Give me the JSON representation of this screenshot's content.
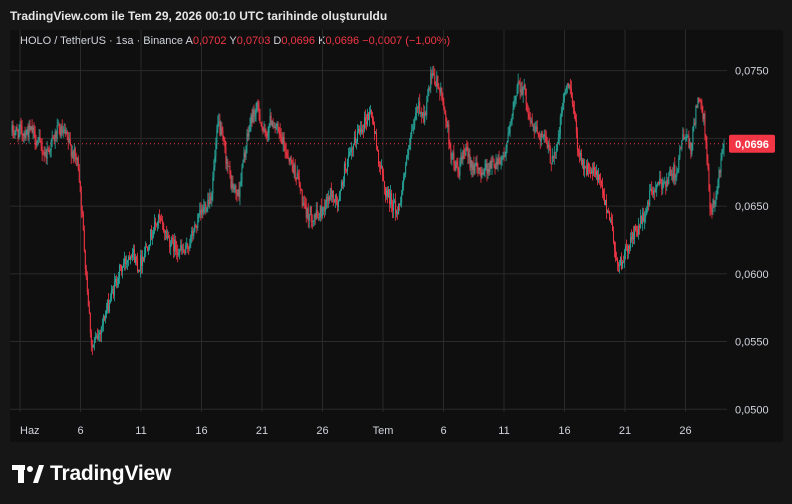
{
  "caption": "TradingView.com ile Tem 29, 2026 00:10 UTC tarihinde oluşturuldu",
  "legend": {
    "symbol": "HOLO / TetherUS · 1sa · Binance",
    "o_label": "A",
    "o_value": "0,0702",
    "h_label": "Y",
    "h_value": "0,0703",
    "l_label": "D",
    "l_value": "0,0696",
    "c_label": "K",
    "c_value": "0,0696",
    "change": "−0,0007 (−1,00%)"
  },
  "price_badge": "0,0696",
  "brand": "TradingView",
  "colors": {
    "up": "#26a69a",
    "down": "#f23645",
    "badge": "#f23645",
    "grid": "#2a2a2a"
  },
  "chart_data": {
    "type": "candlestick",
    "x_ticks": [
      "Haz",
      "6",
      "11",
      "16",
      "21",
      "26",
      "Tem",
      "6",
      "11",
      "16",
      "21",
      "26"
    ],
    "y_ticks": [
      "0,0750",
      "0,0700",
      "0,0650",
      "0,0600",
      "0,0550",
      "0,0500"
    ],
    "ylim": [
      0.0498,
      0.078
    ],
    "last_price": 0.0696,
    "path_anchors": [
      [
        0,
        0.0705
      ],
      [
        3,
        0.0705
      ],
      [
        5,
        0.0688
      ],
      [
        7,
        0.0706
      ],
      [
        8,
        0.0702
      ],
      [
        10,
        0.068
      ],
      [
        11,
        0.061
      ],
      [
        12,
        0.0545
      ],
      [
        13,
        0.0555
      ],
      [
        14,
        0.057
      ],
      [
        16,
        0.06
      ],
      [
        18,
        0.0618
      ],
      [
        19,
        0.0605
      ],
      [
        21,
        0.063
      ],
      [
        22,
        0.064
      ],
      [
        24,
        0.0622
      ],
      [
        26,
        0.0615
      ],
      [
        28,
        0.064
      ],
      [
        30,
        0.066
      ],
      [
        31,
        0.0712
      ],
      [
        32,
        0.069
      ],
      [
        33,
        0.0665
      ],
      [
        34,
        0.0658
      ],
      [
        35,
        0.069
      ],
      [
        36,
        0.0716
      ],
      [
        37,
        0.0722
      ],
      [
        38,
        0.07
      ],
      [
        39,
        0.0715
      ],
      [
        41,
        0.0693
      ],
      [
        43,
        0.067
      ],
      [
        44,
        0.0645
      ],
      [
        46,
        0.0642
      ],
      [
        48,
        0.066
      ],
      [
        49,
        0.065
      ],
      [
        50,
        0.0678
      ],
      [
        51,
        0.0688
      ],
      [
        52,
        0.0705
      ],
      [
        54,
        0.072
      ],
      [
        55,
        0.0688
      ],
      [
        56,
        0.0663
      ],
      [
        58,
        0.0645
      ],
      [
        59,
        0.0675
      ],
      [
        61,
        0.0725
      ],
      [
        62,
        0.0715
      ],
      [
        63,
        0.0745
      ],
      [
        64,
        0.074
      ],
      [
        65,
        0.0722
      ],
      [
        66,
        0.0688
      ],
      [
        67,
        0.0675
      ],
      [
        68,
        0.069
      ],
      [
        70,
        0.0675
      ],
      [
        72,
        0.068
      ],
      [
        74,
        0.0688
      ],
      [
        75,
        0.071
      ],
      [
        76,
        0.0742
      ],
      [
        77,
        0.0735
      ],
      [
        78,
        0.071
      ],
      [
        80,
        0.07
      ],
      [
        81,
        0.0685
      ],
      [
        82,
        0.0695
      ],
      [
        83,
        0.0735
      ],
      [
        84,
        0.0738
      ],
      [
        85,
        0.0695
      ],
      [
        86,
        0.0678
      ],
      [
        88,
        0.0672
      ],
      [
        89,
        0.0655
      ],
      [
        90,
        0.064
      ],
      [
        91,
        0.0605
      ],
      [
        92,
        0.0612
      ],
      [
        93,
        0.0625
      ],
      [
        95,
        0.0642
      ],
      [
        96,
        0.066
      ],
      [
        98,
        0.0668
      ],
      [
        100,
        0.0678
      ],
      [
        101,
        0.0705
      ],
      [
        102,
        0.069
      ],
      [
        103,
        0.073
      ],
      [
        104,
        0.0713
      ],
      [
        105,
        0.0645
      ],
      [
        106,
        0.0662
      ],
      [
        107,
        0.0702
      ]
    ]
  }
}
